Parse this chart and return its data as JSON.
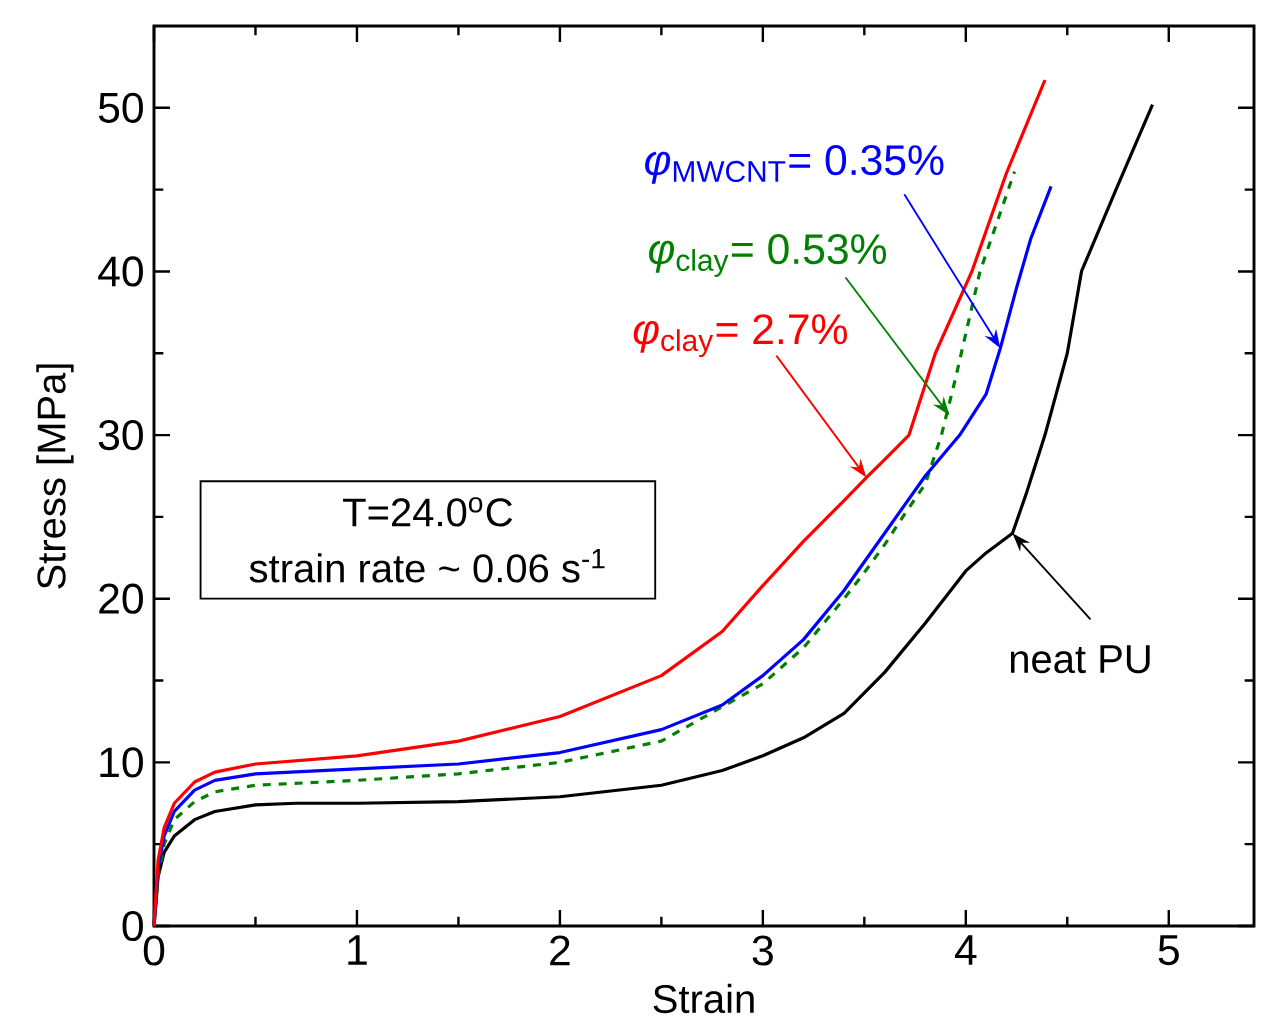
{
  "chart_data": {
    "type": "line",
    "xlabel": "Strain",
    "ylabel": "Stress [MPa]",
    "xlim": [
      0,
      5.42
    ],
    "ylim": [
      0,
      55
    ],
    "xticks": [
      0,
      1,
      2,
      3,
      4,
      5
    ],
    "yticks": [
      0,
      10,
      20,
      30,
      40,
      50
    ],
    "grid": false,
    "marker": "none",
    "series": [
      {
        "color": "#000000",
        "line_style": "solid",
        "x": [
          0,
          0.02,
          0.05,
          0.1,
          0.2,
          0.3,
          0.5,
          0.7,
          1,
          1.5,
          2,
          2.5,
          2.8,
          3,
          3.2,
          3.4,
          3.6,
          3.8,
          4,
          4.1,
          4.23,
          4.3,
          4.39,
          4.5,
          4.57,
          4.74,
          4.92
        ],
        "values": [
          0,
          3,
          4.5,
          5.5,
          6.5,
          7,
          7.4,
          7.5,
          7.5,
          7.6,
          7.9,
          8.6,
          9.5,
          10.4,
          11.5,
          13,
          15.5,
          18.5,
          21.7,
          22.8,
          24,
          26.5,
          30,
          35,
          40,
          45,
          50.2
        ]
      },
      {
        "color": "#008000",
        "line_style": "dashed",
        "x": [
          0,
          0.02,
          0.05,
          0.1,
          0.2,
          0.3,
          0.5,
          1,
          1.5,
          2,
          2.5,
          3,
          3.2,
          3.4,
          3.5,
          3.6,
          3.7,
          3.8,
          3.88,
          3.95,
          4.07,
          4.24
        ],
        "values": [
          0,
          3,
          5,
          6.5,
          7.6,
          8.2,
          8.6,
          8.9,
          9.3,
          10,
          11.3,
          14.8,
          17,
          20,
          21.6,
          23.3,
          25.2,
          27,
          30,
          33.5,
          40,
          46.1
        ]
      },
      {
        "color": "#0000ff",
        "line_style": "solid",
        "x": [
          0,
          0.02,
          0.05,
          0.1,
          0.2,
          0.3,
          0.5,
          1,
          1.5,
          2,
          2.5,
          2.8,
          3,
          3.2,
          3.4,
          3.6,
          3.8,
          3.97,
          4.1,
          4.17,
          4.25,
          4.32,
          4.42
        ],
        "values": [
          0,
          3.5,
          5.5,
          7,
          8.3,
          8.9,
          9.3,
          9.6,
          9.9,
          10.6,
          12,
          13.5,
          15.3,
          17.5,
          20.5,
          24,
          27.5,
          30,
          32.5,
          35.3,
          39,
          42,
          45.2
        ]
      },
      {
        "color": "#ff0000",
        "line_style": "solid",
        "x": [
          0,
          0.02,
          0.05,
          0.1,
          0.2,
          0.3,
          0.5,
          1,
          1.5,
          2,
          2.5,
          2.8,
          3,
          3.2,
          3.4,
          3.51,
          3.6,
          3.72,
          3.85,
          4.03,
          4.2,
          4.39
        ],
        "values": [
          0,
          4,
          6,
          7.5,
          8.8,
          9.4,
          9.9,
          10.4,
          11.3,
          12.8,
          15.3,
          18,
          20.8,
          23.5,
          26,
          27.4,
          28.5,
          30,
          35,
          40,
          46,
          51.7
        ]
      }
    ],
    "annotations": [
      {
        "text": "neat PU",
        "x": 4.23,
        "y": 24
      },
      {
        "text": "*φ*$_{clay}$= 0.53%",
        "x": 3.92,
        "y": 31.2
      },
      {
        "text": "*φ*$_{MWCNT}$= 0.35%",
        "x": 4.17,
        "y": 35.3
      },
      {
        "text": "*φ*$_{clay}$= 2.7%",
        "x": 3.51,
        "y": 27.4
      },
      "T=24.0$^{o}$C",
      "strain rate ~ 0.06 s$^{-1}$"
    ]
  }
}
